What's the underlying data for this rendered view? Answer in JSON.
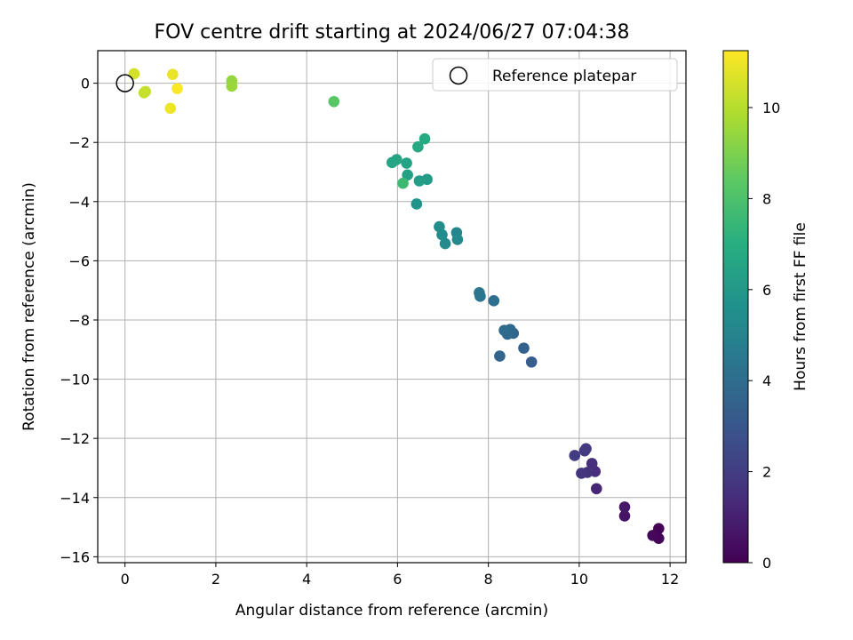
{
  "chart_data": {
    "type": "scatter",
    "title": "FOV centre drift starting at 2024/06/27 07:04:38",
    "xlabel": "Angular distance from reference (arcmin)",
    "ylabel": "Rotation from reference (arcmin)",
    "xlim": [
      -0.6,
      12.35
    ],
    "ylim": [
      -16.2,
      1.1
    ],
    "xticks": [
      0,
      2,
      4,
      6,
      8,
      10,
      12
    ],
    "xtick_labels": [
      "0",
      "2",
      "4",
      "6",
      "8",
      "10",
      "12"
    ],
    "yticks": [
      0,
      -2,
      -4,
      -6,
      -8,
      -10,
      -12,
      -14,
      -16
    ],
    "ytick_labels": [
      "0",
      "−2",
      "−4",
      "−6",
      "−8",
      "−10",
      "−12",
      "−14",
      "−16"
    ],
    "grid": true,
    "legend": {
      "position": "top-right",
      "entries": [
        {
          "label": "Reference platepar",
          "marker": "open-circle"
        }
      ]
    },
    "reference_point": {
      "x": 0,
      "y": 0
    },
    "colorbar": {
      "label": "Hours from first FF file",
      "range": [
        0,
        11.25
      ],
      "ticks": [
        0,
        2,
        4,
        6,
        8,
        10
      ],
      "tick_labels": [
        "0",
        "2",
        "4",
        "6",
        "8",
        "10"
      ],
      "colormap": "viridis"
    },
    "series": [
      {
        "points": [
          {
            "x": 11.75,
            "y": -15.05,
            "c": 0.05
          },
          {
            "x": 11.75,
            "y": -15.38,
            "c": 0.1
          },
          {
            "x": 11.62,
            "y": -15.28,
            "c": 0.2
          },
          {
            "x": 11.0,
            "y": -14.62,
            "c": 0.6
          },
          {
            "x": 11.0,
            "y": -14.32,
            "c": 0.75
          },
          {
            "x": 10.38,
            "y": -13.7,
            "c": 1.2
          },
          {
            "x": 10.35,
            "y": -13.12,
            "c": 1.4
          },
          {
            "x": 10.28,
            "y": -12.85,
            "c": 1.5
          },
          {
            "x": 10.18,
            "y": -13.15,
            "c": 1.6
          },
          {
            "x": 10.05,
            "y": -13.18,
            "c": 1.7
          },
          {
            "x": 10.15,
            "y": -12.35,
            "c": 1.85
          },
          {
            "x": 10.12,
            "y": -12.42,
            "c": 1.9
          },
          {
            "x": 9.9,
            "y": -12.58,
            "c": 2.0
          },
          {
            "x": 8.95,
            "y": -9.42,
            "c": 3.3
          },
          {
            "x": 8.78,
            "y": -8.95,
            "c": 3.45
          },
          {
            "x": 8.25,
            "y": -9.22,
            "c": 3.6
          },
          {
            "x": 8.55,
            "y": -8.45,
            "c": 3.7
          },
          {
            "x": 8.48,
            "y": -8.32,
            "c": 3.8
          },
          {
            "x": 8.42,
            "y": -8.48,
            "c": 3.85
          },
          {
            "x": 8.35,
            "y": -8.35,
            "c": 3.9
          },
          {
            "x": 8.12,
            "y": -7.35,
            "c": 4.1
          },
          {
            "x": 7.82,
            "y": -7.2,
            "c": 4.3
          },
          {
            "x": 7.8,
            "y": -7.08,
            "c": 4.4
          },
          {
            "x": 7.3,
            "y": -5.05,
            "c": 5.1
          },
          {
            "x": 7.32,
            "y": -5.28,
            "c": 5.2
          },
          {
            "x": 7.05,
            "y": -5.42,
            "c": 5.3
          },
          {
            "x": 6.98,
            "y": -5.12,
            "c": 5.4
          },
          {
            "x": 6.92,
            "y": -4.85,
            "c": 5.5
          },
          {
            "x": 6.42,
            "y": -4.08,
            "c": 5.8
          },
          {
            "x": 6.65,
            "y": -3.25,
            "c": 6.1
          },
          {
            "x": 6.48,
            "y": -3.3,
            "c": 6.2
          },
          {
            "x": 6.22,
            "y": -3.1,
            "c": 6.35
          },
          {
            "x": 6.2,
            "y": -2.7,
            "c": 6.5
          },
          {
            "x": 5.98,
            "y": -2.58,
            "c": 6.55
          },
          {
            "x": 5.88,
            "y": -2.68,
            "c": 6.6
          },
          {
            "x": 6.45,
            "y": -2.15,
            "c": 6.75
          },
          {
            "x": 6.6,
            "y": -1.88,
            "c": 6.85
          },
          {
            "x": 6.12,
            "y": -3.38,
            "c": 7.6
          },
          {
            "x": 4.6,
            "y": -0.62,
            "c": 8.3
          },
          {
            "x": 2.35,
            "y": 0.08,
            "c": 9.4
          },
          {
            "x": 2.35,
            "y": -0.1,
            "c": 9.5
          },
          {
            "x": 0.42,
            "y": -0.32,
            "c": 10.25
          },
          {
            "x": 0.45,
            "y": -0.28,
            "c": 10.3
          },
          {
            "x": 0.2,
            "y": 0.32,
            "c": 10.5
          },
          {
            "x": 1.05,
            "y": 0.3,
            "c": 10.9
          },
          {
            "x": 1.0,
            "y": -0.85,
            "c": 11.0
          },
          {
            "x": 1.15,
            "y": -0.18,
            "c": 11.2
          }
        ]
      }
    ]
  }
}
